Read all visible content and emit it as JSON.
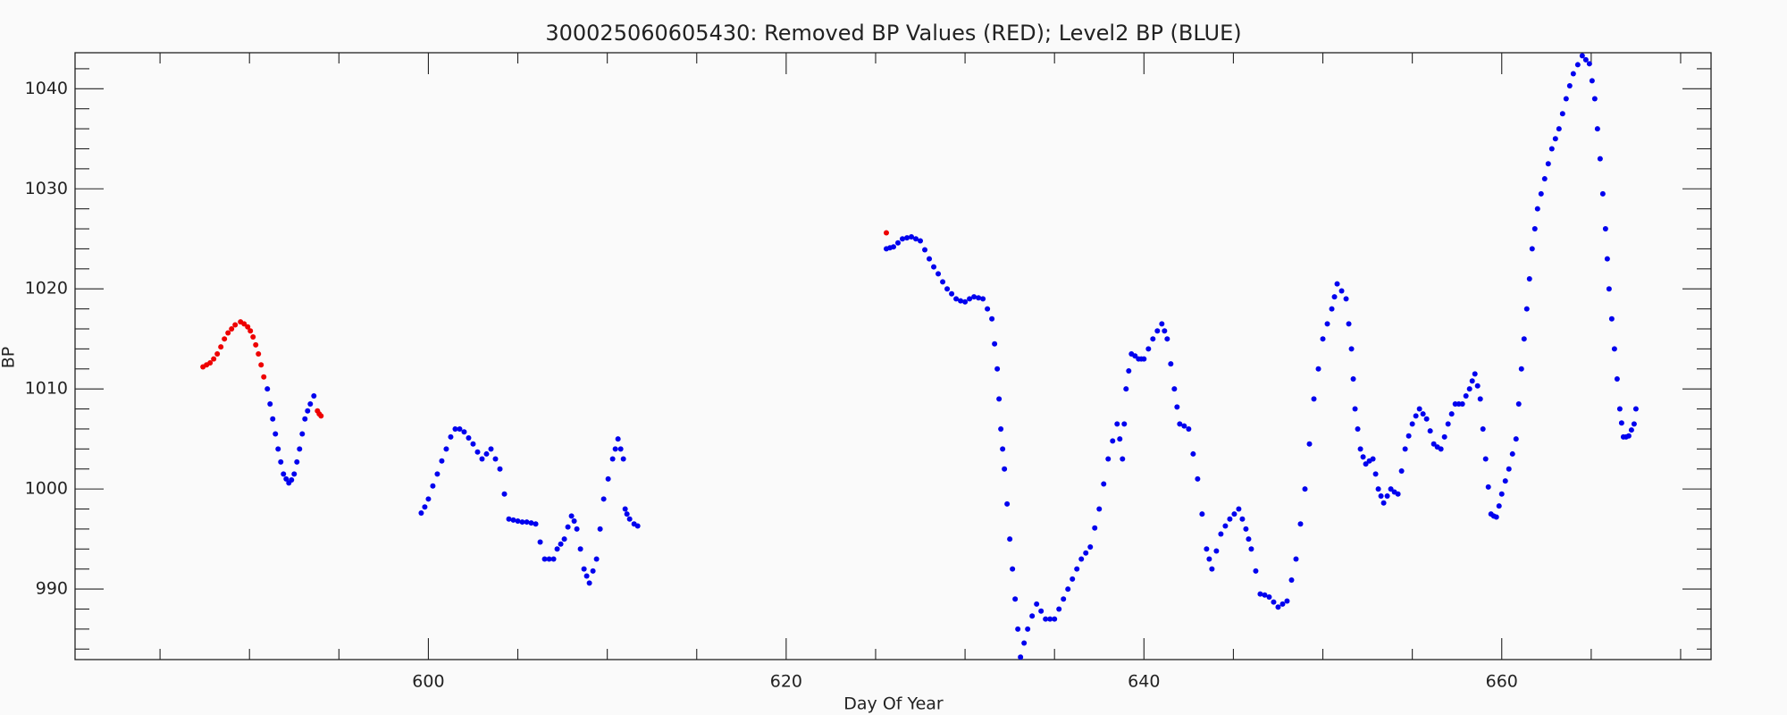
{
  "chart_data": {
    "type": "scatter",
    "title": "300025060605430: Removed BP Values (RED); Level2 BP (BLUE)",
    "x_label": "Day Of Year",
    "y_label": "BP",
    "xlim": [
      580.25,
      671.7
    ],
    "ylim": [
      982.95,
      1043.6
    ],
    "xticks": [
      600,
      620,
      640,
      660
    ],
    "yticks": [
      990,
      1000,
      1010,
      1020,
      1030,
      1040
    ],
    "xminorticks": [
      585,
      590,
      595,
      605,
      610,
      615,
      625,
      630,
      635,
      645,
      650,
      655,
      665,
      670
    ],
    "yminorticks": [
      984,
      986,
      988,
      992,
      994,
      996,
      998,
      1002,
      1004,
      1006,
      1008,
      1012,
      1014,
      1016,
      1018,
      1022,
      1024,
      1026,
      1028,
      1032,
      1034,
      1036,
      1038,
      1042
    ],
    "series": [
      {
        "name": "Removed BP Values",
        "color": "#ee0000",
        "x": [
          587.4,
          587.6,
          587.8,
          588.0,
          588.2,
          588.4,
          588.6,
          588.8,
          589.0,
          589.2,
          589.5,
          589.7,
          589.9,
          590.05,
          590.2,
          590.35,
          590.5,
          590.65,
          590.8,
          593.8,
          593.9,
          594.0,
          625.6
        ],
        "values": [
          1012.2,
          1012.4,
          1012.6,
          1013.0,
          1013.5,
          1014.2,
          1015.0,
          1015.6,
          1016.0,
          1016.4,
          1016.7,
          1016.5,
          1016.2,
          1015.8,
          1015.2,
          1014.4,
          1013.5,
          1012.4,
          1011.2,
          1007.8,
          1007.5,
          1007.3,
          1025.6
        ]
      },
      {
        "name": "Level2 BP",
        "color": "#0000ee",
        "x": [
          591.0,
          591.15,
          591.3,
          591.45,
          591.6,
          591.75,
          591.9,
          592.05,
          592.2,
          592.35,
          592.5,
          592.65,
          592.8,
          592.95,
          593.1,
          593.25,
          593.4,
          593.6,
          599.6,
          599.8,
          600.0,
          600.25,
          600.5,
          600.75,
          601.0,
          601.25,
          601.5,
          601.75,
          602.0,
          602.25,
          602.5,
          602.75,
          603.0,
          603.25,
          603.5,
          603.75,
          604.0,
          604.25,
          604.5,
          604.75,
          605.0,
          605.25,
          605.5,
          605.75,
          606.0,
          606.25,
          606.5,
          606.75,
          607.0,
          607.2,
          607.4,
          607.6,
          607.8,
          608.0,
          608.15,
          608.3,
          608.5,
          608.7,
          608.85,
          609.0,
          609.2,
          609.4,
          609.6,
          609.8,
          610.05,
          610.3,
          610.45,
          610.6,
          610.75,
          610.9,
          611.0,
          611.1,
          611.25,
          611.5,
          611.7,
          625.6,
          625.8,
          626.0,
          626.25,
          626.5,
          626.75,
          627.0,
          627.25,
          627.5,
          627.75,
          628.0,
          628.25,
          628.5,
          628.75,
          629.0,
          629.25,
          629.5,
          629.75,
          630.0,
          630.25,
          630.5,
          630.75,
          631.0,
          631.25,
          631.5,
          631.65,
          631.8,
          631.9,
          632.0,
          632.1,
          632.2,
          632.35,
          632.5,
          632.65,
          632.8,
          632.95,
          633.1,
          633.3,
          633.5,
          633.75,
          634.0,
          634.25,
          634.5,
          634.75,
          635.0,
          635.25,
          635.5,
          635.75,
          636.0,
          636.25,
          636.5,
          636.75,
          637.0,
          637.25,
          637.5,
          637.75,
          638.0,
          638.25,
          638.5,
          638.65,
          638.8,
          638.9,
          639.0,
          639.15,
          639.3,
          639.5,
          639.7,
          639.85,
          640.0,
          640.25,
          640.5,
          640.75,
          641.0,
          641.15,
          641.3,
          641.5,
          641.7,
          641.85,
          642.0,
          642.25,
          642.5,
          642.75,
          643.0,
          643.25,
          643.5,
          643.65,
          643.8,
          644.05,
          644.3,
          644.55,
          644.8,
          645.05,
          645.3,
          645.5,
          645.7,
          645.85,
          646.0,
          646.25,
          646.5,
          646.75,
          647.0,
          647.25,
          647.5,
          647.75,
          648.0,
          648.25,
          648.5,
          648.75,
          649.0,
          649.25,
          649.5,
          649.75,
          650.0,
          650.25,
          650.5,
          650.65,
          650.8,
          651.05,
          651.3,
          651.45,
          651.6,
          651.7,
          651.8,
          651.95,
          652.1,
          652.25,
          652.4,
          652.6,
          652.8,
          652.95,
          653.1,
          653.25,
          653.4,
          653.6,
          653.8,
          654.0,
          654.2,
          654.4,
          654.6,
          654.8,
          655.0,
          655.2,
          655.4,
          655.6,
          655.8,
          656.0,
          656.2,
          656.4,
          656.6,
          656.8,
          657.0,
          657.2,
          657.4,
          657.6,
          657.8,
          658.0,
          658.2,
          658.35,
          658.5,
          658.65,
          658.8,
          658.95,
          659.1,
          659.25,
          659.4,
          659.55,
          659.7,
          659.85,
          660.0,
          660.2,
          660.4,
          660.6,
          660.8,
          660.95,
          661.1,
          661.25,
          661.4,
          661.55,
          661.7,
          661.85,
          662.0,
          662.2,
          662.4,
          662.6,
          662.8,
          663.0,
          663.2,
          663.4,
          663.6,
          663.8,
          664.0,
          664.25,
          664.5,
          664.7,
          664.9,
          665.05,
          665.2,
          665.35,
          665.5,
          665.65,
          665.8,
          665.9,
          666.0,
          666.15,
          666.3,
          666.45,
          666.6,
          666.7,
          666.8,
          666.95,
          667.1,
          667.25,
          667.4,
          667.5
        ],
        "values": [
          1010.0,
          1008.5,
          1007.0,
          1005.5,
          1004.0,
          1002.7,
          1001.5,
          1001.0,
          1000.6,
          1000.9,
          1001.5,
          1002.7,
          1004.0,
          1005.5,
          1007.0,
          1007.8,
          1008.5,
          1009.3,
          997.6,
          998.2,
          999.0,
          1000.3,
          1001.5,
          1002.8,
          1004.0,
          1005.2,
          1006.0,
          1006.0,
          1005.7,
          1005.1,
          1004.5,
          1003.7,
          1003.0,
          1003.5,
          1004.0,
          1003.0,
          1002.0,
          999.5,
          997.0,
          996.9,
          996.8,
          996.7,
          996.7,
          996.6,
          996.5,
          994.7,
          993.0,
          993.0,
          993.0,
          994.0,
          994.5,
          995.0,
          996.2,
          997.3,
          996.8,
          996.0,
          994.0,
          992.0,
          991.3,
          990.6,
          991.8,
          993.0,
          996.0,
          999.0,
          1001.0,
          1003.0,
          1004.0,
          1005.0,
          1004.0,
          1003.0,
          998.0,
          997.5,
          997.0,
          996.5,
          996.3,
          1024.0,
          1024.1,
          1024.2,
          1024.6,
          1025.0,
          1025.1,
          1025.2,
          1025.0,
          1024.8,
          1023.9,
          1023.0,
          1022.2,
          1021.5,
          1020.7,
          1020.0,
          1019.5,
          1019.0,
          1018.8,
          1018.7,
          1019.0,
          1019.2,
          1019.1,
          1019.0,
          1018.0,
          1017.0,
          1014.5,
          1012.0,
          1009.0,
          1006.0,
          1004.0,
          1002.0,
          998.5,
          995.0,
          992.0,
          989.0,
          986.0,
          983.2,
          984.6,
          986.0,
          987.3,
          988.5,
          987.8,
          987.0,
          987.0,
          987.0,
          988.0,
          989.0,
          990.0,
          991.0,
          992.0,
          993.0,
          993.6,
          994.2,
          996.1,
          998.0,
          1000.5,
          1003.0,
          1004.8,
          1006.5,
          1005.0,
          1003.0,
          1006.5,
          1010.0,
          1011.8,
          1013.5,
          1013.3,
          1013.0,
          1013.0,
          1013.0,
          1014.0,
          1015.0,
          1015.8,
          1016.5,
          1015.8,
          1015.0,
          1012.5,
          1010.0,
          1008.2,
          1006.5,
          1006.3,
          1006.0,
          1003.5,
          1001.0,
          997.5,
          994.0,
          993.0,
          992.0,
          993.8,
          995.5,
          996.3,
          997.0,
          997.5,
          998.0,
          997.0,
          996.0,
          995.0,
          994.0,
          991.8,
          989.5,
          989.4,
          989.2,
          988.7,
          988.2,
          988.5,
          988.8,
          990.9,
          993.0,
          996.5,
          1000.0,
          1004.5,
          1009.0,
          1012.0,
          1015.0,
          1016.5,
          1018.0,
          1019.2,
          1020.5,
          1019.8,
          1019.0,
          1016.5,
          1014.0,
          1011.0,
          1008.0,
          1006.0,
          1004.0,
          1003.2,
          1002.5,
          1002.8,
          1003.0,
          1001.5,
          1000.0,
          999.3,
          998.6,
          999.3,
          1000.0,
          999.7,
          999.5,
          1001.8,
          1004.0,
          1005.3,
          1006.5,
          1007.3,
          1008.0,
          1007.5,
          1007.0,
          1005.8,
          1004.5,
          1004.2,
          1004.0,
          1005.2,
          1006.5,
          1007.5,
          1008.5,
          1008.5,
          1008.5,
          1009.3,
          1010.0,
          1010.8,
          1011.5,
          1010.3,
          1009.0,
          1006.0,
          1003.0,
          1000.2,
          997.5,
          997.3,
          997.2,
          998.3,
          999.5,
          1000.8,
          1002.0,
          1003.5,
          1005.0,
          1008.5,
          1012.0,
          1015.0,
          1018.0,
          1021.0,
          1024.0,
          1026.0,
          1028.0,
          1029.5,
          1031.0,
          1032.5,
          1034.0,
          1035.0,
          1036.0,
          1037.5,
          1039.0,
          1040.3,
          1041.5,
          1042.4,
          1043.3,
          1042.9,
          1042.5,
          1040.8,
          1039.0,
          1036.0,
          1033.0,
          1029.5,
          1026.0,
          1023.0,
          1020.0,
          1017.0,
          1014.0,
          1011.0,
          1008.0,
          1006.6,
          1005.2,
          1005.2,
          1005.3,
          1005.9,
          1006.5,
          1008.0
        ]
      }
    ]
  }
}
